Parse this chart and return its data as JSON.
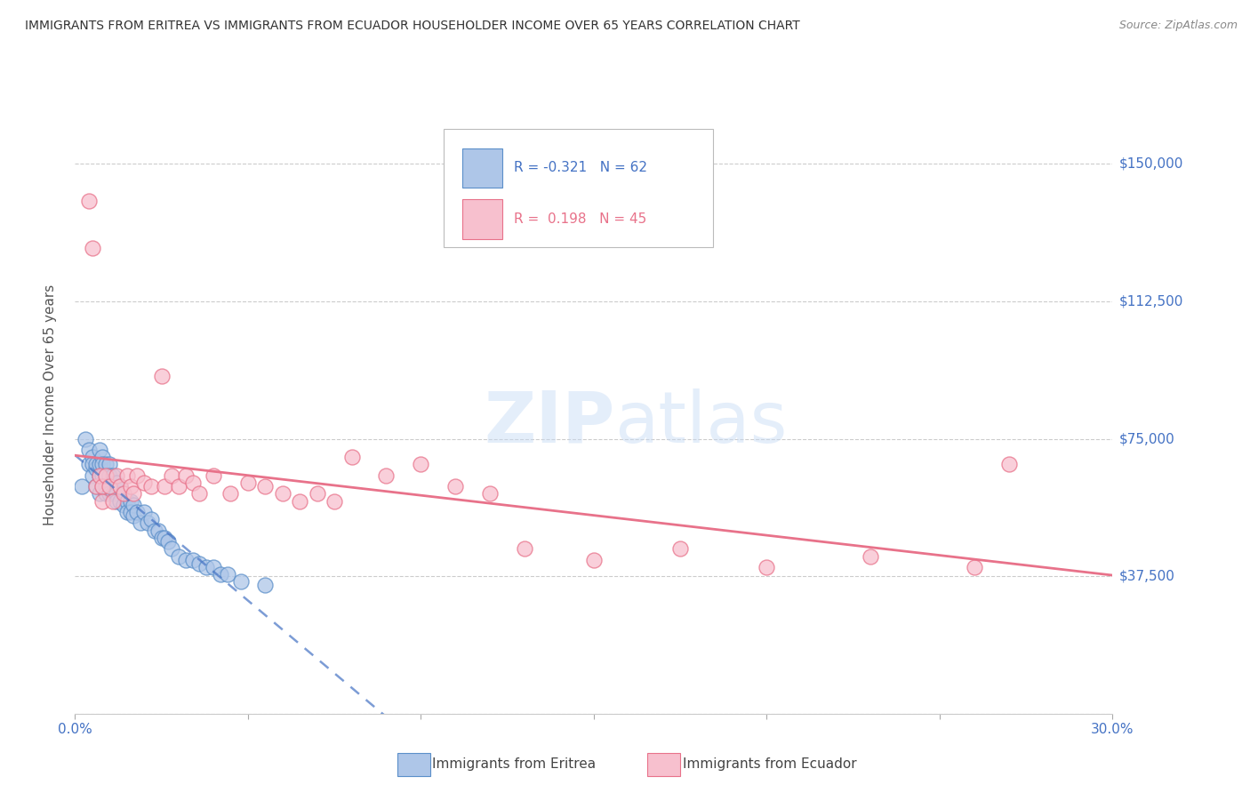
{
  "title": "IMMIGRANTS FROM ERITREA VS IMMIGRANTS FROM ECUADOR HOUSEHOLDER INCOME OVER 65 YEARS CORRELATION CHART",
  "source": "Source: ZipAtlas.com",
  "ylabel": "Householder Income Over 65 years",
  "xlim": [
    0.0,
    0.3
  ],
  "ylim": [
    0,
    168750
  ],
  "yticks": [
    0,
    37500,
    75000,
    112500,
    150000
  ],
  "ytick_labels": [
    "",
    "$37,500",
    "$75,000",
    "$112,500",
    "$150,000"
  ],
  "xtick_positions": [
    0.0,
    0.05,
    0.1,
    0.15,
    0.2,
    0.25,
    0.3
  ],
  "xtick_labels": [
    "0.0%",
    "",
    "",
    "",
    "",
    "",
    "30.0%"
  ],
  "legend_eritrea_R": "-0.321",
  "legend_eritrea_N": "62",
  "legend_ecuador_R": "0.198",
  "legend_ecuador_N": "45",
  "color_eritrea_fill": "#aec6e8",
  "color_eritrea_edge": "#5b8fc9",
  "color_ecuador_fill": "#f7c0ce",
  "color_ecuador_edge": "#e8728a",
  "color_eritrea_line": "#4472c4",
  "color_ecuador_line": "#e8728a",
  "color_axis_labels": "#4472c4",
  "background_color": "#ffffff",
  "eritrea_x": [
    0.002,
    0.003,
    0.004,
    0.004,
    0.005,
    0.005,
    0.005,
    0.006,
    0.006,
    0.006,
    0.007,
    0.007,
    0.007,
    0.007,
    0.008,
    0.008,
    0.008,
    0.008,
    0.009,
    0.009,
    0.009,
    0.009,
    0.01,
    0.01,
    0.01,
    0.01,
    0.011,
    0.011,
    0.012,
    0.012,
    0.012,
    0.013,
    0.013,
    0.014,
    0.014,
    0.015,
    0.015,
    0.016,
    0.016,
    0.017,
    0.017,
    0.018,
    0.019,
    0.02,
    0.021,
    0.022,
    0.023,
    0.024,
    0.025,
    0.026,
    0.027,
    0.028,
    0.03,
    0.032,
    0.034,
    0.036,
    0.038,
    0.04,
    0.042,
    0.044,
    0.048,
    0.055
  ],
  "eritrea_y": [
    62000,
    75000,
    68000,
    72000,
    65000,
    70000,
    68000,
    67000,
    62000,
    68000,
    72000,
    68000,
    65000,
    60000,
    70000,
    68000,
    65000,
    62000,
    68000,
    65000,
    62000,
    60000,
    68000,
    65000,
    62000,
    60000,
    65000,
    60000,
    63000,
    60000,
    58000,
    62000,
    58000,
    60000,
    57000,
    58000,
    55000,
    58000,
    55000,
    57000,
    54000,
    55000,
    52000,
    55000,
    52000,
    53000,
    50000,
    50000,
    48000,
    48000,
    47000,
    45000,
    43000,
    42000,
    42000,
    41000,
    40000,
    40000,
    38000,
    38000,
    36000,
    35000
  ],
  "ecuador_x": [
    0.004,
    0.005,
    0.006,
    0.007,
    0.008,
    0.008,
    0.009,
    0.01,
    0.011,
    0.012,
    0.013,
    0.014,
    0.015,
    0.016,
    0.017,
    0.018,
    0.02,
    0.022,
    0.025,
    0.026,
    0.028,
    0.03,
    0.032,
    0.034,
    0.036,
    0.04,
    0.045,
    0.05,
    0.055,
    0.06,
    0.065,
    0.07,
    0.075,
    0.08,
    0.09,
    0.1,
    0.11,
    0.12,
    0.13,
    0.15,
    0.175,
    0.2,
    0.23,
    0.26,
    0.27
  ],
  "ecuador_y": [
    140000,
    127000,
    62000,
    65000,
    62000,
    58000,
    65000,
    62000,
    58000,
    65000,
    62000,
    60000,
    65000,
    62000,
    60000,
    65000,
    63000,
    62000,
    92000,
    62000,
    65000,
    62000,
    65000,
    63000,
    60000,
    65000,
    60000,
    63000,
    62000,
    60000,
    58000,
    60000,
    58000,
    70000,
    65000,
    68000,
    62000,
    60000,
    45000,
    42000,
    45000,
    40000,
    43000,
    40000,
    68000
  ]
}
